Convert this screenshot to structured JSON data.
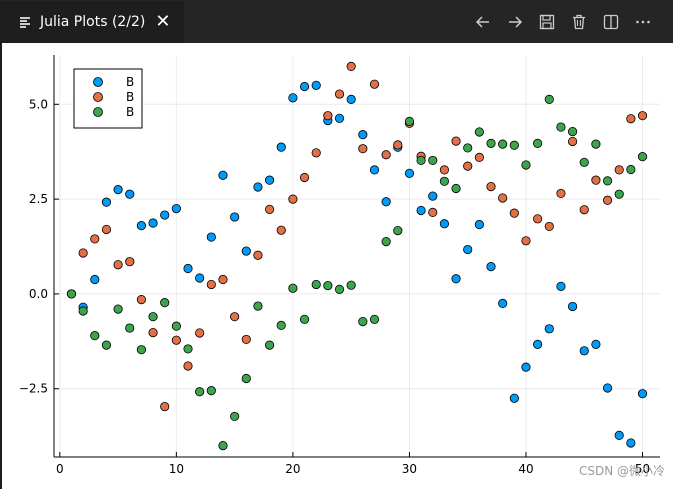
{
  "tab": {
    "title": "Julia Plots (2/2)",
    "close_symbol": "✕"
  },
  "toolbar": {
    "actions": [
      {
        "name": "back-arrow-icon"
      },
      {
        "name": "forward-arrow-icon"
      },
      {
        "name": "save-icon"
      },
      {
        "name": "trash-icon"
      },
      {
        "name": "split-editor-icon"
      },
      {
        "name": "more-icon"
      }
    ]
  },
  "watermark": "CSDN @微小冷",
  "chart_data": {
    "type": "scatter",
    "title": "",
    "xlabel": "",
    "ylabel": "",
    "xlim": [
      -0.5,
      51.5
    ],
    "ylim": [
      -4.3,
      6.3
    ],
    "xticks": [
      0,
      10,
      20,
      30,
      40,
      50
    ],
    "xtick_labels": [
      "0",
      "10",
      "20",
      "30",
      "40",
      "50"
    ],
    "yticks": [
      -2.5,
      0.0,
      2.5,
      5.0
    ],
    "ytick_labels": [
      "−2.5",
      "0.0",
      "2.5",
      "5.0"
    ],
    "grid": true,
    "legend_position": "top-left",
    "series": [
      {
        "name": "B",
        "color": "#009af9",
        "x": [
          1,
          2,
          3,
          4,
          5,
          6,
          7,
          8,
          9,
          10,
          11,
          12,
          13,
          14,
          15,
          16,
          17,
          18,
          19,
          20,
          21,
          22,
          23,
          24,
          25,
          26,
          27,
          28,
          29,
          30,
          31,
          32,
          33,
          34,
          35,
          36,
          37,
          38,
          39,
          40,
          41,
          42,
          43,
          44,
          45,
          46,
          47,
          48,
          49,
          50
        ],
        "y": [
          0.0,
          -0.35,
          0.38,
          2.42,
          2.75,
          2.63,
          1.8,
          1.87,
          2.08,
          2.25,
          0.67,
          0.42,
          1.5,
          3.13,
          2.03,
          1.13,
          2.82,
          3.0,
          3.87,
          5.17,
          5.47,
          5.5,
          4.57,
          4.63,
          5.13,
          4.2,
          3.27,
          2.43,
          3.87,
          3.18,
          2.2,
          2.58,
          1.85,
          0.4,
          1.17,
          1.83,
          0.72,
          -0.25,
          -2.75,
          -1.93,
          -1.33,
          -0.92,
          0.2,
          -0.33,
          -1.5,
          -1.33,
          -2.48,
          -3.73,
          -3.93,
          -2.63
        ]
      },
      {
        "name": "B",
        "color": "#e26f46",
        "x": [
          1,
          2,
          3,
          4,
          5,
          6,
          7,
          8,
          9,
          10,
          11,
          12,
          13,
          14,
          15,
          16,
          17,
          18,
          19,
          20,
          21,
          22,
          23,
          24,
          25,
          26,
          27,
          28,
          29,
          30,
          31,
          32,
          33,
          34,
          35,
          36,
          37,
          38,
          39,
          40,
          41,
          42,
          43,
          44,
          45,
          46,
          47,
          48,
          49,
          50
        ],
        "y": [
          0.0,
          1.08,
          1.45,
          1.7,
          0.77,
          0.85,
          -0.15,
          -1.02,
          -2.97,
          -1.22,
          -1.9,
          -1.03,
          0.25,
          0.38,
          -0.6,
          -1.2,
          1.02,
          2.23,
          1.68,
          2.5,
          3.07,
          3.72,
          4.7,
          5.27,
          6.0,
          3.83,
          5.53,
          3.67,
          3.93,
          4.5,
          3.63,
          2.15,
          3.27,
          4.03,
          3.37,
          3.6,
          2.83,
          2.53,
          2.13,
          1.4,
          1.98,
          1.78,
          2.65,
          4.02,
          2.22,
          3.0,
          2.47,
          3.27,
          4.62,
          4.7
        ]
      },
      {
        "name": "B",
        "color": "#3da44d",
        "x": [
          1,
          2,
          3,
          4,
          5,
          6,
          7,
          8,
          9,
          10,
          11,
          12,
          13,
          14,
          15,
          16,
          17,
          18,
          19,
          20,
          21,
          22,
          23,
          24,
          25,
          26,
          27,
          28,
          29,
          30,
          31,
          32,
          33,
          34,
          35,
          36,
          37,
          38,
          39,
          40,
          41,
          42,
          43,
          44,
          45,
          46,
          47,
          48,
          49,
          50
        ],
        "y": [
          0.0,
          -0.45,
          -1.1,
          -1.35,
          -0.4,
          -0.9,
          -1.47,
          -0.6,
          -0.23,
          -0.85,
          -1.45,
          -2.58,
          -2.55,
          -4.0,
          -3.23,
          -2.23,
          -0.32,
          -1.35,
          -0.83,
          0.15,
          -0.67,
          0.25,
          0.22,
          0.12,
          0.23,
          -0.73,
          -0.67,
          1.38,
          1.67,
          4.55,
          3.52,
          3.52,
          2.97,
          2.78,
          3.85,
          4.27,
          3.97,
          3.95,
          3.92,
          3.4,
          3.97,
          5.13,
          4.4,
          4.28,
          3.47,
          3.95,
          2.98,
          2.63,
          3.28,
          3.62
        ]
      }
    ]
  }
}
